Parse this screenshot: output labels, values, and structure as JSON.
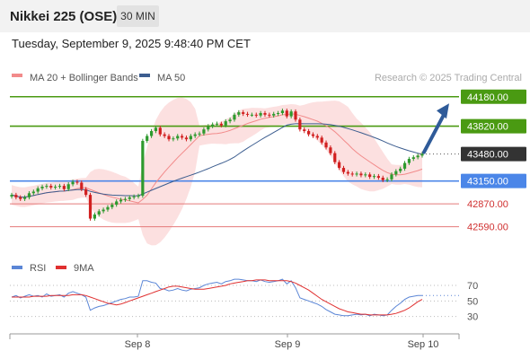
{
  "header": {
    "title": "Nikkei 225 (OSE)",
    "timeframe": "30 MIN",
    "datetime": "Tuesday, September 9, 2025 9:48:40 PM CET"
  },
  "colors": {
    "support_resistance_green": "#4a9a12",
    "pivot_blue": "#4b86e8",
    "support_red": "#e47a7a",
    "current_price_box": "#333333",
    "bollinger_fill": "#fcdada",
    "ma20": "#f28b8b",
    "ma50": "#3c5d8f",
    "arrow": "#2f5b99",
    "rsi": "#5b86d6",
    "rsi_ma": "#e03030"
  },
  "chart_data": [
    {
      "type": "candlestick",
      "legend": [
        {
          "name": "MA 20 + Bollinger Bands",
          "color": "#f28b8b"
        },
        {
          "name": "MA 50",
          "color": "#3c5d8f"
        }
      ],
      "legend_position": "top-left",
      "credit": "Research © 2025 Trading Central",
      "x_ticks": [
        "Sep 8",
        "Sep 9",
        "Sep 10"
      ],
      "y_range": [
        42400,
        44320
      ],
      "current_price": 43480.0,
      "levels": [
        {
          "value": 44180.0,
          "label": "44180.00",
          "kind": "resistance"
        },
        {
          "value": 43820.0,
          "label": "43820.00",
          "kind": "resistance"
        },
        {
          "value": 43480.0,
          "label": "43480.00",
          "kind": "current"
        },
        {
          "value": 43150.0,
          "label": "43150.00",
          "kind": "pivot"
        },
        {
          "value": 42870.0,
          "label": "42870.00",
          "kind": "support"
        },
        {
          "value": 42590.0,
          "label": "42590.00",
          "kind": "support"
        }
      ],
      "target_arrow": {
        "from": 43480,
        "to": 44120
      },
      "close_path": [
        42980,
        42950,
        42930,
        42950,
        43000,
        43020,
        43060,
        43080,
        43090,
        43070,
        43080,
        43090,
        43050,
        43110,
        43140,
        43130,
        43050,
        42980,
        42690,
        42740,
        42780,
        42800,
        42830,
        42860,
        42900,
        42920,
        42930,
        42950,
        42960,
        42970,
        43640,
        43700,
        43760,
        43800,
        43720,
        43700,
        43660,
        43670,
        43700,
        43680,
        43660,
        43700,
        43720,
        43730,
        43780,
        43820,
        43840,
        43850,
        43830,
        43880,
        43900,
        43960,
        43990,
        43970,
        43960,
        43960,
        43950,
        43980,
        43960,
        43950,
        43970,
        43980,
        44010,
        43940,
        44000,
        43900,
        43780,
        43760,
        43720,
        43700,
        43680,
        43620,
        43560,
        43490,
        43380,
        43310,
        43260,
        43240,
        43230,
        43240,
        43220,
        43230,
        43200,
        43210,
        43190,
        43160,
        43170,
        43230,
        43270,
        43300,
        43370,
        43420,
        43440,
        43460,
        43480
      ]
    },
    {
      "type": "line",
      "legend": [
        {
          "name": "RSI",
          "color": "#5b86d6"
        },
        {
          "name": "9MA",
          "color": "#e03030"
        }
      ],
      "y_ticks": [
        70,
        50,
        30
      ],
      "y_range": [
        10,
        85
      ],
      "rsi": [
        55,
        57,
        54,
        56,
        58,
        56,
        57,
        55,
        59,
        56,
        57,
        58,
        55,
        60,
        62,
        60,
        58,
        55,
        38,
        41,
        43,
        44,
        46,
        48,
        50,
        52,
        53,
        55,
        55,
        56,
        76,
        76,
        74,
        73,
        66,
        65,
        63,
        64,
        66,
        64,
        63,
        65,
        66,
        67,
        70,
        72,
        73,
        74,
        72,
        75,
        76,
        78,
        78,
        77,
        76,
        76,
        75,
        77,
        75,
        74,
        75,
        76,
        78,
        72,
        76,
        67,
        54,
        52,
        50,
        48,
        46,
        43,
        39,
        36,
        33,
        32,
        31,
        31,
        32,
        33,
        32,
        33,
        31,
        33,
        32,
        31,
        32,
        38,
        43,
        47,
        52,
        55,
        56,
        57,
        57
      ],
      "ma9": [
        55,
        55,
        55,
        55,
        55,
        56,
        56,
        56,
        56,
        57,
        57,
        57,
        57,
        57,
        58,
        58,
        58,
        57,
        55,
        53,
        51,
        49,
        47,
        46,
        45,
        46,
        48,
        50,
        52,
        54,
        56,
        58,
        60,
        62,
        64,
        66,
        68,
        69,
        69,
        68,
        67,
        66,
        65,
        65,
        65,
        66,
        67,
        68,
        69,
        70,
        72,
        73,
        74,
        75,
        76,
        76,
        77,
        77,
        77,
        76,
        76,
        76,
        76,
        76,
        75,
        73,
        70,
        67,
        64,
        60,
        56,
        52,
        49,
        46,
        43,
        40,
        38,
        36,
        35,
        34,
        33,
        33,
        32,
        32,
        32,
        32,
        32,
        33,
        34,
        36,
        38,
        41,
        45,
        49,
        52
      ]
    }
  ]
}
